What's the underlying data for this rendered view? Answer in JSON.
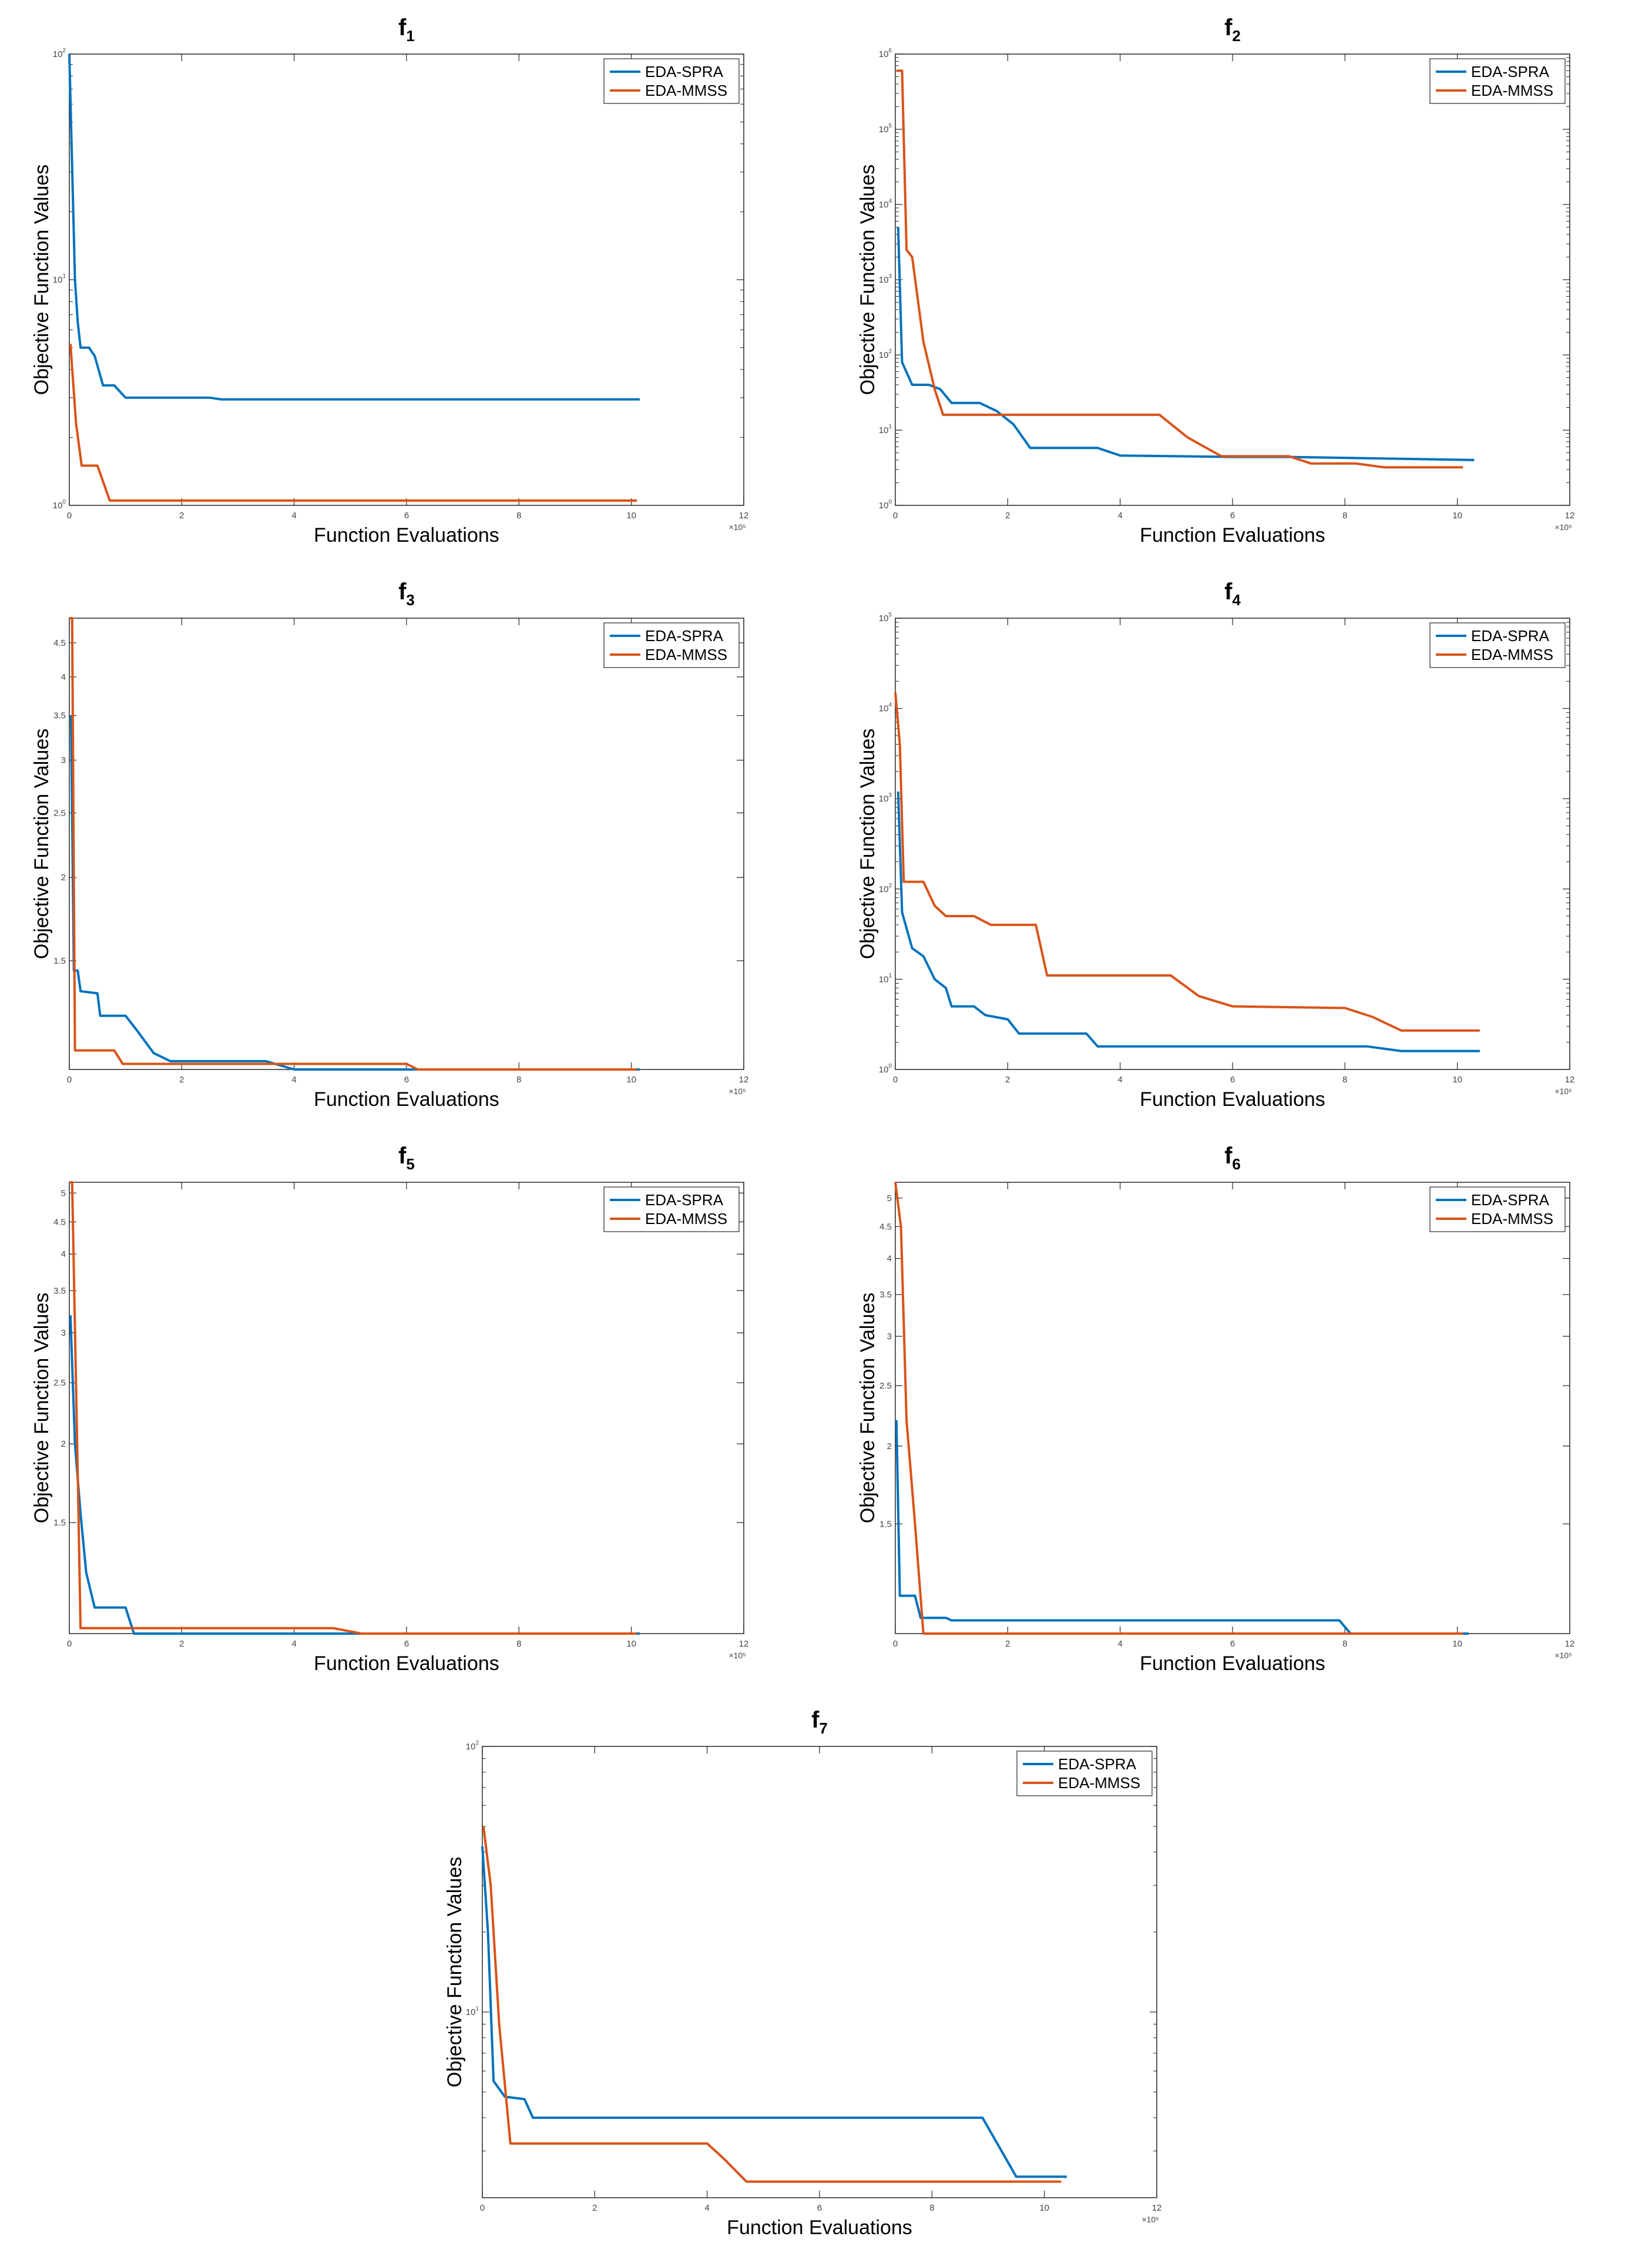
{
  "page": {
    "background": "#ffffff"
  },
  "legend_entries": [
    "EDA-SPRA",
    "EDA-MMSS"
  ],
  "series_colors": {
    "EDA-SPRA": "#0072BD",
    "EDA-MMSS": "#D95319"
  },
  "chart_data": [
    {
      "id": "f1",
      "type": "line",
      "title": "f",
      "title_sub": "1",
      "xlabel": "Function Evaluations",
      "ylabel": "Objective Function Values",
      "xlim": [
        0,
        12
      ],
      "x_ticks": [
        "0",
        "2",
        "4",
        "6",
        "8",
        "10",
        "12"
      ],
      "x_multiplier": "×10⁵",
      "yscale": "log",
      "ylim": [
        1,
        100
      ],
      "y_ticks": [
        {
          "base": "10",
          "exp": "0",
          "value": 1
        },
        {
          "base": "10",
          "exp": "1",
          "value": 10
        },
        {
          "base": "10",
          "exp": "2",
          "value": 100
        }
      ],
      "legend": [
        "EDA-SPRA",
        "EDA-MMSS"
      ],
      "series": [
        {
          "name": "EDA-SPRA",
          "points": [
            [
              0,
              100
            ],
            [
              0.04,
              40
            ],
            [
              0.1,
              10
            ],
            [
              0.15,
              6.5
            ],
            [
              0.2,
              5
            ],
            [
              0.35,
              5
            ],
            [
              0.45,
              4.6
            ],
            [
              0.6,
              3.4
            ],
            [
              0.8,
              3.4
            ],
            [
              1.0,
              3.0
            ],
            [
              2.5,
              3.0
            ],
            [
              2.7,
              2.95
            ],
            [
              10.15,
              2.95
            ]
          ]
        },
        {
          "name": "EDA-MMSS",
          "points": [
            [
              0.02,
              5.2
            ],
            [
              0.12,
              2.3
            ],
            [
              0.22,
              1.5
            ],
            [
              0.5,
              1.5
            ],
            [
              0.72,
              1.05
            ],
            [
              10.1,
              1.05
            ]
          ]
        }
      ]
    },
    {
      "id": "f2",
      "type": "line",
      "title": "f",
      "title_sub": "2",
      "xlabel": "Function Evaluations",
      "ylabel": "Objective Function Values",
      "xlim": [
        0,
        12
      ],
      "x_ticks": [
        "0",
        "2",
        "4",
        "6",
        "8",
        "10",
        "12"
      ],
      "x_multiplier": "×10⁵",
      "yscale": "log",
      "ylim": [
        1,
        1000000
      ],
      "y_ticks": [
        {
          "base": "10",
          "exp": "0",
          "value": 1
        },
        {
          "base": "10",
          "exp": "1",
          "value": 10
        },
        {
          "base": "10",
          "exp": "2",
          "value": 100
        },
        {
          "base": "10",
          "exp": "3",
          "value": 1000
        },
        {
          "base": "10",
          "exp": "4",
          "value": 10000
        },
        {
          "base": "10",
          "exp": "5",
          "value": 100000
        },
        {
          "base": "10",
          "exp": "6",
          "value": 1000000
        }
      ],
      "legend": [
        "EDA-SPRA",
        "EDA-MMSS"
      ],
      "series": [
        {
          "name": "EDA-SPRA",
          "points": [
            [
              0.05,
              5000
            ],
            [
              0.12,
              80
            ],
            [
              0.3,
              40
            ],
            [
              0.6,
              40
            ],
            [
              0.8,
              35
            ],
            [
              1.0,
              23
            ],
            [
              1.5,
              23
            ],
            [
              1.8,
              18
            ],
            [
              2.1,
              12
            ],
            [
              2.4,
              5.8
            ],
            [
              3.6,
              5.8
            ],
            [
              4.0,
              4.6
            ],
            [
              6.0,
              4.4
            ],
            [
              7.0,
              4.4
            ],
            [
              10.3,
              4.0
            ]
          ]
        },
        {
          "name": "EDA-MMSS",
          "points": [
            [
              0.02,
              600000
            ],
            [
              0.12,
              600000
            ],
            [
              0.2,
              2500
            ],
            [
              0.3,
              2000
            ],
            [
              0.5,
              150
            ],
            [
              0.7,
              35
            ],
            [
              0.85,
              16
            ],
            [
              4.7,
              16
            ],
            [
              5.2,
              8
            ],
            [
              5.8,
              4.5
            ],
            [
              7.0,
              4.5
            ],
            [
              7.4,
              3.6
            ],
            [
              8.2,
              3.6
            ],
            [
              8.7,
              3.2
            ],
            [
              10.1,
              3.2
            ]
          ]
        }
      ]
    },
    {
      "id": "f3",
      "type": "line",
      "title": "f",
      "title_sub": "3",
      "xlabel": "Function Evaluations",
      "ylabel": "Objective Function Values",
      "xlim": [
        0,
        12
      ],
      "x_ticks": [
        "0",
        "2",
        "4",
        "6",
        "8",
        "10",
        "12"
      ],
      "x_multiplier": "×10⁵",
      "yscale": "log",
      "ylim": [
        1.03,
        4.9
      ],
      "y_ticks": [
        {
          "label": "1.5",
          "value": 1.5
        },
        {
          "label": "2",
          "value": 2
        },
        {
          "label": "2.5",
          "value": 2.5
        },
        {
          "label": "3",
          "value": 3
        },
        {
          "label": "3.5",
          "value": 3.5
        },
        {
          "label": "4",
          "value": 4
        },
        {
          "label": "4.5",
          "value": 4.5
        }
      ],
      "legend": [
        "EDA-SPRA",
        "EDA-MMSS"
      ],
      "series": [
        {
          "name": "EDA-SPRA",
          "points": [
            [
              0.03,
              3.5
            ],
            [
              0.08,
              1.45
            ],
            [
              0.15,
              1.45
            ],
            [
              0.2,
              1.35
            ],
            [
              0.5,
              1.34
            ],
            [
              0.55,
              1.24
            ],
            [
              1.0,
              1.24
            ],
            [
              1.2,
              1.18
            ],
            [
              1.5,
              1.09
            ],
            [
              1.8,
              1.06
            ],
            [
              3.5,
              1.06
            ],
            [
              4.0,
              1.03
            ],
            [
              10.15,
              1.03
            ]
          ]
        },
        {
          "name": "EDA-MMSS",
          "points": [
            [
              0,
              4.9
            ],
            [
              0.05,
              4.9
            ],
            [
              0.1,
              1.1
            ],
            [
              0.8,
              1.1
            ],
            [
              0.95,
              1.05
            ],
            [
              6.0,
              1.05
            ],
            [
              6.2,
              1.03
            ],
            [
              10.1,
              1.03
            ]
          ]
        }
      ]
    },
    {
      "id": "f4",
      "type": "line",
      "title": "f",
      "title_sub": "4",
      "xlabel": "Function Evaluations",
      "ylabel": "Objective Function Values",
      "xlim": [
        0,
        12
      ],
      "x_ticks": [
        "0",
        "2",
        "4",
        "6",
        "8",
        "10",
        "12"
      ],
      "x_multiplier": "×10⁵",
      "yscale": "log",
      "ylim": [
        1,
        100000
      ],
      "y_ticks": [
        {
          "base": "10",
          "exp": "0",
          "value": 1
        },
        {
          "base": "10",
          "exp": "1",
          "value": 10
        },
        {
          "base": "10",
          "exp": "2",
          "value": 100
        },
        {
          "base": "10",
          "exp": "3",
          "value": 1000
        },
        {
          "base": "10",
          "exp": "4",
          "value": 10000
        },
        {
          "base": "10",
          "exp": "5",
          "value": 100000
        }
      ],
      "legend": [
        "EDA-SPRA",
        "EDA-MMSS"
      ],
      "series": [
        {
          "name": "EDA-SPRA",
          "points": [
            [
              0.05,
              1200
            ],
            [
              0.12,
              55
            ],
            [
              0.3,
              22
            ],
            [
              0.5,
              18
            ],
            [
              0.7,
              10
            ],
            [
              0.9,
              8
            ],
            [
              1.0,
              5
            ],
            [
              1.4,
              5
            ],
            [
              1.6,
              4
            ],
            [
              2.0,
              3.6
            ],
            [
              2.2,
              2.5
            ],
            [
              3.4,
              2.5
            ],
            [
              3.6,
              1.8
            ],
            [
              8.4,
              1.8
            ],
            [
              9.0,
              1.6
            ],
            [
              10.4,
              1.6
            ]
          ]
        },
        {
          "name": "EDA-MMSS",
          "points": [
            [
              0,
              15000
            ],
            [
              0.08,
              4000
            ],
            [
              0.15,
              120
            ],
            [
              0.5,
              120
            ],
            [
              0.7,
              65
            ],
            [
              0.9,
              50
            ],
            [
              1.4,
              50
            ],
            [
              1.7,
              40
            ],
            [
              2.5,
              40
            ],
            [
              2.7,
              11
            ],
            [
              4.9,
              11
            ],
            [
              5.4,
              6.5
            ],
            [
              6.0,
              5
            ],
            [
              8.0,
              4.8
            ],
            [
              8.5,
              3.8
            ],
            [
              9.0,
              2.7
            ],
            [
              10.4,
              2.7
            ]
          ]
        }
      ]
    },
    {
      "id": "f5",
      "type": "line",
      "title": "f",
      "title_sub": "5",
      "xlabel": "Function Evaluations",
      "ylabel": "Objective Function Values",
      "xlim": [
        0,
        12
      ],
      "x_ticks": [
        "0",
        "2",
        "4",
        "6",
        "8",
        "10",
        "12"
      ],
      "x_multiplier": "×10⁵",
      "yscale": "log",
      "ylim": [
        1.0,
        5.2
      ],
      "y_ticks": [
        {
          "label": "1.5",
          "value": 1.5
        },
        {
          "label": "2",
          "value": 2
        },
        {
          "label": "2.5",
          "value": 2.5
        },
        {
          "label": "3",
          "value": 3
        },
        {
          "label": "3.5",
          "value": 3.5
        },
        {
          "label": "4",
          "value": 4
        },
        {
          "label": "4.5",
          "value": 4.5
        },
        {
          "label": "5",
          "value": 5
        }
      ],
      "legend": [
        "EDA-SPRA",
        "EDA-MMSS"
      ],
      "series": [
        {
          "name": "EDA-SPRA",
          "points": [
            [
              0.02,
              3.2
            ],
            [
              0.1,
              2.0
            ],
            [
              0.2,
              1.55
            ],
            [
              0.3,
              1.25
            ],
            [
              0.45,
              1.1
            ],
            [
              1.0,
              1.1
            ],
            [
              1.15,
              1.0
            ],
            [
              10.15,
              1.0
            ]
          ]
        },
        {
          "name": "EDA-MMSS",
          "points": [
            [
              0,
              5.2
            ],
            [
              0.05,
              5.2
            ],
            [
              0.15,
              1.8
            ],
            [
              0.2,
              1.02
            ],
            [
              4.7,
              1.02
            ],
            [
              5.2,
              1.0
            ],
            [
              10.1,
              1.0
            ]
          ]
        }
      ]
    },
    {
      "id": "f6",
      "type": "line",
      "title": "f",
      "title_sub": "6",
      "xlabel": "Function Evaluations",
      "ylabel": "Objective Function Values",
      "xlim": [
        0,
        12
      ],
      "x_ticks": [
        "0",
        "2",
        "4",
        "6",
        "8",
        "10",
        "12"
      ],
      "x_multiplier": "×10⁵",
      "yscale": "log",
      "ylim": [
        1.0,
        5.3
      ],
      "y_ticks": [
        {
          "label": "1.5",
          "value": 1.5
        },
        {
          "label": "2",
          "value": 2
        },
        {
          "label": "2.5",
          "value": 2.5
        },
        {
          "label": "3",
          "value": 3
        },
        {
          "label": "3.5",
          "value": 3.5
        },
        {
          "label": "4",
          "value": 4
        },
        {
          "label": "4.5",
          "value": 4.5
        },
        {
          "label": "5",
          "value": 5
        }
      ],
      "legend": [
        "EDA-SPRA",
        "EDA-MMSS"
      ],
      "series": [
        {
          "name": "EDA-SPRA",
          "points": [
            [
              0.02,
              2.2
            ],
            [
              0.08,
              1.15
            ],
            [
              0.35,
              1.15
            ],
            [
              0.45,
              1.06
            ],
            [
              0.9,
              1.06
            ],
            [
              1.0,
              1.05
            ],
            [
              7.9,
              1.05
            ],
            [
              8.1,
              1.0
            ],
            [
              10.2,
              1.0
            ]
          ]
        },
        {
          "name": "EDA-MMSS",
          "points": [
            [
              0,
              5.3
            ],
            [
              0.1,
              4.5
            ],
            [
              0.2,
              2.2
            ],
            [
              0.35,
              1.5
            ],
            [
              0.5,
              1.0
            ],
            [
              10.1,
              1.0
            ]
          ]
        }
      ]
    },
    {
      "id": "f7",
      "type": "line",
      "title": "f",
      "title_sub": "7",
      "xlabel": "Function Evaluations",
      "ylabel": "Objective Function Values",
      "xlim": [
        0,
        12
      ],
      "x_ticks": [
        "0",
        "2",
        "4",
        "6",
        "8",
        "10",
        "12"
      ],
      "x_multiplier": "×10⁵",
      "yscale": "log",
      "ylim": [
        2.0,
        100
      ],
      "y_ticks": [
        {
          "base": "10",
          "exp": "1",
          "value": 10
        },
        {
          "base": "10",
          "exp": "2",
          "value": 100
        }
      ],
      "legend": [
        "EDA-SPRA",
        "EDA-MMSS"
      ],
      "series": [
        {
          "name": "EDA-SPRA",
          "points": [
            [
              0,
              42
            ],
            [
              0.1,
              20
            ],
            [
              0.2,
              5.5
            ],
            [
              0.4,
              4.8
            ],
            [
              0.75,
              4.7
            ],
            [
              0.9,
              4.0
            ],
            [
              3.0,
              4.0
            ],
            [
              8.9,
              4.0
            ],
            [
              9.5,
              2.4
            ],
            [
              10.4,
              2.4
            ]
          ]
        },
        {
          "name": "EDA-MMSS",
          "points": [
            [
              0.02,
              50
            ],
            [
              0.15,
              30
            ],
            [
              0.3,
              9
            ],
            [
              0.5,
              3.2
            ],
            [
              4.0,
              3.2
            ],
            [
              4.3,
              2.8
            ],
            [
              4.7,
              2.3
            ],
            [
              10.3,
              2.3
            ]
          ]
        }
      ]
    }
  ]
}
